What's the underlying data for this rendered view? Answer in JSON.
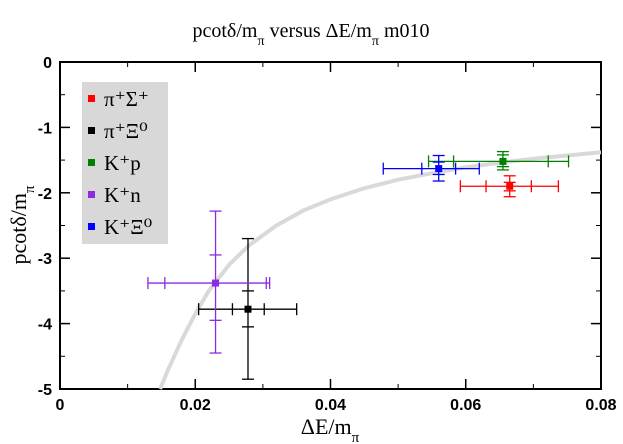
{
  "chart_data": {
    "type": "scatter",
    "title": "pcotδ/m",
    "title_sub": "π",
    "title_tail": " versus ΔE/m",
    "title_sub2": "π",
    "title_end": " m010",
    "xlabel": "ΔE/m",
    "xlabel_sub": "π",
    "ylabel": "pcotδ/m",
    "ylabel_sub": "π",
    "xlim": [
      0,
      0.08
    ],
    "ylim": [
      -5,
      0
    ],
    "x_ticks": [
      0,
      0.02,
      0.04,
      0.06,
      0.08
    ],
    "x_tick_labels": [
      "0",
      "0.02",
      "0.04",
      "0.06",
      "0.08"
    ],
    "y_ticks": [
      0,
      -1,
      -2,
      -3,
      -4,
      -5
    ],
    "y_tick_labels": [
      "0",
      "-1",
      "-2",
      "-3",
      "-4",
      "-5"
    ],
    "legend_position": "top-left",
    "series": [
      {
        "name": "π⁺Σ⁺",
        "color": "#ff0000",
        "x": 0.0665,
        "y": -1.9,
        "x_err_inner": [
          0.063,
          0.0697
        ],
        "x_err_outer": [
          0.0592,
          0.0737
        ],
        "y_err_inner": [
          -1.84,
          -1.97
        ],
        "y_err_outer": [
          -1.74,
          -2.06
        ]
      },
      {
        "name": "π⁺Ξ⁰",
        "color": "#000000",
        "x": 0.0278,
        "y": -3.78,
        "x_err_inner": [
          0.0255,
          0.0302
        ],
        "x_err_outer": [
          0.0205,
          0.035
        ],
        "y_err_inner": [
          -3.5,
          -4.05
        ],
        "y_err_outer": [
          -2.7,
          -4.85
        ]
      },
      {
        "name": "K⁺p",
        "color": "#008000",
        "x": 0.0655,
        "y": -1.52,
        "x_err_inner": [
          0.0582,
          0.0722
        ],
        "x_err_outer": [
          0.0545,
          0.0752
        ],
        "y_err_inner": [
          -1.42,
          -1.6
        ],
        "y_err_outer": [
          -1.37,
          -1.65
        ]
      },
      {
        "name": "K⁺n",
        "color": "#8b2be2",
        "x": 0.023,
        "y": -3.38,
        "x_err_inner": [
          0.0155,
          0.0305
        ],
        "x_err_outer": [
          0.013,
          0.031
        ],
        "y_err_inner": [
          -2.95,
          -3.95
        ],
        "y_err_outer": [
          -2.28,
          -4.45
        ]
      },
      {
        "name": "K⁺Ξ⁰",
        "color": "#0000ff",
        "x": 0.056,
        "y": -1.63,
        "x_err_inner": [
          0.0535,
          0.0585
        ],
        "x_err_outer": [
          0.0478,
          0.062
        ],
        "y_err_inner": [
          -1.53,
          -1.72
        ],
        "y_err_outer": [
          -1.43,
          -1.82
        ]
      }
    ],
    "curve": {
      "name": "fit",
      "color": "#d9d9d9",
      "x": [
        0.0148,
        0.016,
        0.018,
        0.02,
        0.022,
        0.025,
        0.028,
        0.032,
        0.036,
        0.04,
        0.045,
        0.05,
        0.055,
        0.06,
        0.065,
        0.07,
        0.075,
        0.08
      ],
      "y": [
        -5.0,
        -4.7,
        -4.25,
        -3.85,
        -3.5,
        -3.1,
        -2.8,
        -2.5,
        -2.27,
        -2.1,
        -1.93,
        -1.8,
        -1.7,
        -1.61,
        -1.54,
        -1.48,
        -1.43,
        -1.38
      ]
    }
  }
}
